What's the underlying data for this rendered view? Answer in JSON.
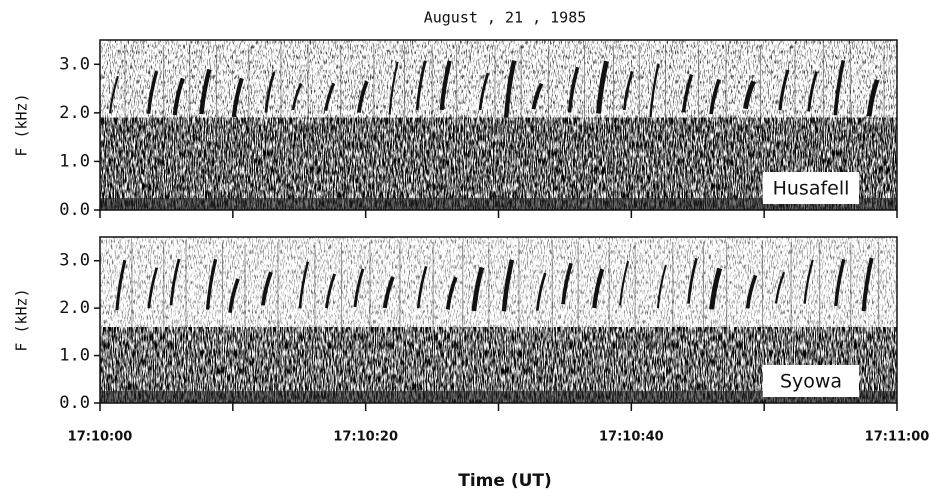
{
  "chart_data": {
    "type": "spectrogram",
    "title": "August , 21 , 1985",
    "x_label": "Time (UT)",
    "y_label": "F (kHz)",
    "xlim": [
      0,
      60
    ],
    "xticks": [
      {
        "value": 0,
        "label": "17:10:00"
      },
      {
        "value": 20,
        "label": "17:10:20"
      },
      {
        "value": 40,
        "label": "17:10:40"
      },
      {
        "value": 60,
        "label": "17:11:00"
      }
    ],
    "xminor_ticks": [
      10,
      30,
      50
    ],
    "ylim": [
      0,
      3.5
    ],
    "yticks": [
      {
        "value": 0,
        "label": "0.0"
      },
      {
        "value": 1,
        "label": "1.0"
      },
      {
        "value": 2,
        "label": "2.0"
      },
      {
        "value": 3,
        "label": "3.0"
      }
    ],
    "panels": [
      "Husafell",
      "Syowa"
    ]
  }
}
